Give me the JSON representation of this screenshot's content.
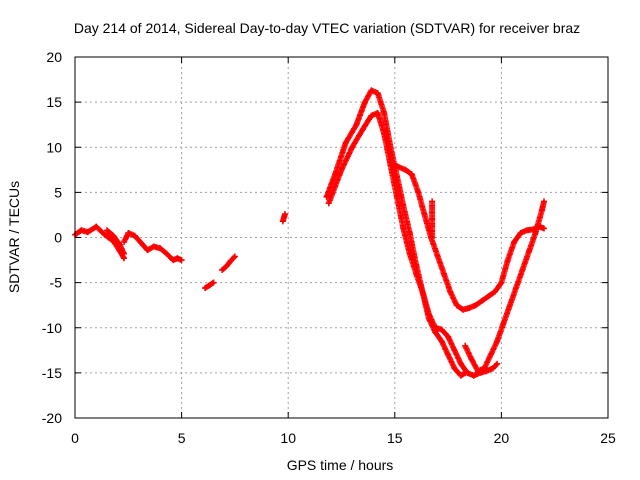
{
  "chart_data": {
    "type": "scatter",
    "title": "Day 214 of 2014, Sidereal Day-to-day VTEC variation (SDTVAR) for receiver braz",
    "xlabel": "GPS time / hours",
    "ylabel": "SDTVAR / TECUs",
    "xlim": [
      0,
      25
    ],
    "ylim": [
      -20,
      20
    ],
    "x_ticks": [
      "0",
      "5",
      "10",
      "15",
      "20",
      "25"
    ],
    "y_ticks": [
      "20",
      "15",
      "10",
      "5",
      "0",
      "-5",
      "-10",
      "-15",
      "-20"
    ],
    "grid": true,
    "legend": "none",
    "marker": "+",
    "color": "#ff0000",
    "series": [
      {
        "x": [
          0,
          0.3,
          0.6,
          1.0,
          1.4,
          1.8,
          2.1,
          2.3
        ],
        "y": [
          0.3,
          0.8,
          0.6,
          1.2,
          0.3,
          -0.4,
          -1.5,
          -2.3
        ]
      },
      {
        "x": [
          1.5,
          1.8,
          2.1,
          2.3
        ],
        "y": [
          0.8,
          0.2,
          -0.8,
          -1.8
        ]
      },
      {
        "x": [
          2.3,
          2.5,
          2.8,
          3.1,
          3.4,
          3.7,
          4.0,
          4.3,
          4.6,
          4.8,
          5.0
        ],
        "y": [
          -0.5,
          0.5,
          0.2,
          -0.6,
          -1.4,
          -1.0,
          -1.2,
          -1.8,
          -2.5,
          -2.3,
          -2.5
        ]
      },
      {
        "x": [
          6.1,
          6.3,
          6.5
        ],
        "y": [
          -5.6,
          -5.3,
          -5.0
        ]
      },
      {
        "x": [
          6.9,
          7.1,
          7.3,
          7.5
        ],
        "y": [
          -3.6,
          -3.2,
          -2.6,
          -2.1
        ]
      },
      {
        "x": [
          9.75,
          9.85
        ],
        "y": [
          1.8,
          2.6
        ]
      },
      {
        "x": [
          11.8,
          12.2,
          12.7,
          13.2,
          13.6,
          13.9,
          14.2,
          14.5,
          14.8,
          15.1,
          15.4,
          15.7,
          16.0,
          16.3,
          16.6,
          16.9,
          17.2,
          17.5,
          17.8,
          18.1,
          18.3
        ],
        "y": [
          4.5,
          7.0,
          10.5,
          12.5,
          15.0,
          16.3,
          16.0,
          13.8,
          10.0,
          6.8,
          3.5,
          0.5,
          -3.0,
          -6.0,
          -9.0,
          -10.5,
          -11.5,
          -13.0,
          -14.5,
          -15.3,
          -15.0
        ]
      },
      {
        "x": [
          11.9,
          12.5,
          13.0,
          13.5,
          13.9,
          14.2,
          14.5,
          14.8,
          15.1,
          15.4,
          15.7,
          16.0,
          16.3,
          16.6,
          16.9,
          17.2,
          17.5,
          17.8,
          18.1,
          18.4,
          18.7,
          19.0,
          19.3,
          19.6,
          19.8
        ],
        "y": [
          3.8,
          7.5,
          10.0,
          12.0,
          13.5,
          13.8,
          11.5,
          8.0,
          4.5,
          1.0,
          -1.8,
          -4.0,
          -6.0,
          -8.5,
          -10.0,
          -10.2,
          -11.0,
          -12.5,
          -14.0,
          -15.0,
          -15.3,
          -15.0,
          -14.8,
          -14.5,
          -14.0
        ]
      },
      {
        "x": [
          15.0,
          15.5,
          15.8,
          16.1,
          16.4,
          16.7,
          17.0,
          17.3,
          17.6,
          17.9,
          18.2,
          18.5,
          18.8,
          19.1,
          19.4,
          19.7,
          20.0,
          20.3,
          20.6,
          20.9,
          21.2,
          21.5,
          21.8,
          22.0
        ],
        "y": [
          8.0,
          7.5,
          7.0,
          5.0,
          2.5,
          0.0,
          -2.0,
          -4.0,
          -6.0,
          -7.5,
          -8.0,
          -7.8,
          -7.5,
          -7.0,
          -6.5,
          -6.0,
          -5.0,
          -2.5,
          -0.5,
          0.5,
          0.8,
          0.9,
          1.2,
          1.0
        ]
      },
      {
        "x": [
          18.3,
          18.6,
          18.9,
          19.2,
          19.5,
          19.8,
          20.1,
          20.4,
          20.7,
          21.0,
          21.3,
          21.6,
          21.9,
          22.0
        ],
        "y": [
          -12.0,
          -13.5,
          -14.8,
          -14.5,
          -13.0,
          -11.5,
          -9.5,
          -7.5,
          -5.5,
          -3.5,
          -1.5,
          0.5,
          3.0,
          4.0
        ]
      },
      {
        "x": [
          16.75,
          16.75,
          16.75
        ],
        "y": [
          4.0,
          2.0,
          0.0
        ]
      }
    ]
  }
}
